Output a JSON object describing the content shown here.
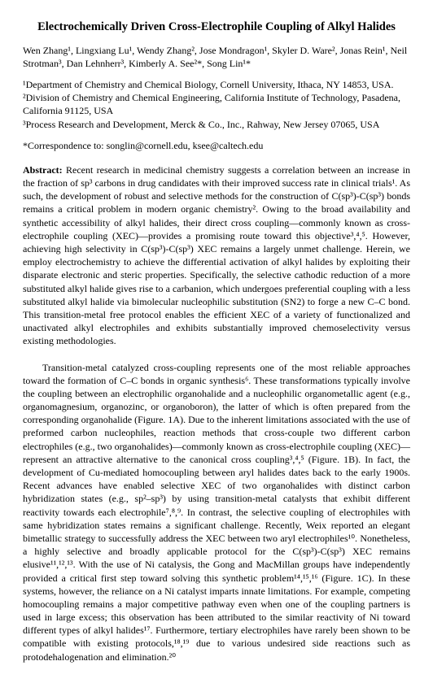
{
  "title": "Electrochemically Driven Cross-Electrophile Coupling of Alkyl Halides",
  "authors": "Wen Zhang¹, Lingxiang Lu¹, Wendy Zhang², Jose Mondragon¹, Skyler D. Ware², Jonas Rein¹, Neil Strotman³, Dan Lehnherr³, Kimberly A. See²*, Song Lin¹*",
  "affiliations": {
    "a1": "¹Department of Chemistry and Chemical Biology, Cornell University, Ithaca, NY 14853, USA.",
    "a2": "²Division of Chemistry and Chemical Engineering, California Institute of Technology, Pasadena, California 91125, USA",
    "a3": "³Process Research and Development, Merck & Co., Inc., Rahway, New Jersey 07065, USA"
  },
  "correspondence": "*Correspondence to: songlin@cornell.edu, ksee@caltech.edu",
  "abstract_label": "Abstract:",
  "abstract_text": " Recent research in medicinal chemistry suggests a correlation between an increase in the fraction of sp³ carbons in drug candidates with their improved success rate in clinical trials¹. As such, the development of robust and selective methods for the construction of C(sp³)-C(sp³) bonds remains a critical problem in modern organic chemistry². Owing to the broad availability and synthetic accessibility of alkyl halides, their direct cross coupling—commonly known as cross-electrophile coupling (XEC)—provides a promising route toward this objective³,⁴,⁵. However, achieving high selectivity in C(sp³)-C(sp³) XEC remains a largely unmet challenge. Herein, we employ electrochemistry to achieve the differential activation of alkyl halides by exploiting their disparate electronic and steric properties. Specifically, the selective cathodic reduction of a more substituted alkyl halide gives rise to a carbanion, which undergoes preferential coupling with a less substituted alkyl halide via bimolecular nucleophilic substitution (SN2) to forge a new C–C bond. This transition-metal free protocol enables the efficient XEC of a variety of functionalized and unactivated alkyl electrophiles and exhibits substantially improved chemoselectivity versus existing methodologies.",
  "body_text": "Transition-metal catalyzed cross-coupling represents one of the most reliable approaches toward the formation of C–C bonds in organic synthesis⁶. These transformations typically involve the coupling between an electrophilic organohalide and a nucleophilic organometallic agent (e.g., organomagnesium, organozinc, or organoboron), the latter of which is often prepared from the corresponding organohalide (Figure. 1A). Due to the inherent limitations associated with the use of preformed carbon nucleophiles, reaction methods that cross-couple two different carbon electrophiles (e.g., two organohalides)—commonly known as cross-electrophile coupling (XEC)—represent an attractive alternative to the canonical cross coupling³,⁴,⁵ (Figure. 1B). In fact, the development of Cu-mediated homocoupling between aryl halides dates back to the early 1900s. Recent advances have enabled selective XEC of two organohalides with distinct carbon hybridization states (e.g., sp²–sp³) by using transition-metal catalysts that exhibit different reactivity towards each electrophile⁷,⁸,⁹. In contrast, the selective coupling of electrophiles with same hybridization states remains a significant challenge. Recently, Weix reported an elegant bimetallic strategy to successfully address the XEC between two aryl electrophiles¹⁰. Nonetheless, a highly selective and broadly applicable protocol for the C(sp³)-C(sp³) XEC remains elusive¹¹,¹²,¹³. With the use of Ni catalysis, the Gong and MacMillan groups have independently provided a critical first step toward solving this synthetic problem¹⁴,¹⁵,¹⁶ (Figure. 1C). In these systems, however, the reliance on a Ni catalyst imparts innate limitations. For example, competing homocoupling remains a major competitive pathway even when one of the coupling partners is used in large excess; this observation has been attributed to the similar reactivity of Ni toward different types of alkyl halides¹⁷. Furthermore, tertiary electrophiles have rarely been shown to be compatible with existing protocols,¹⁸,¹⁹ due to various undesired side reactions such as protodehalogenation and elimination.²⁰"
}
